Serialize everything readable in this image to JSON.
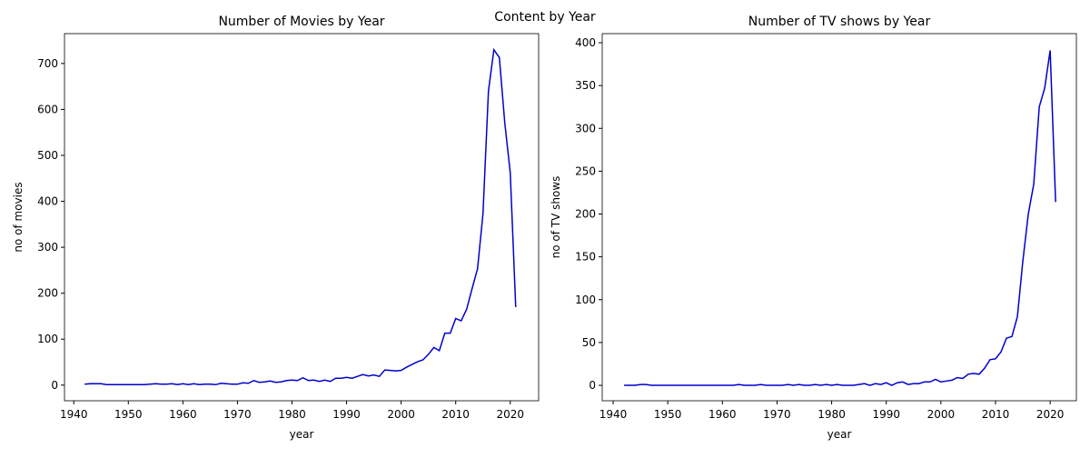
{
  "title": "Content by Year",
  "chart_data": [
    {
      "type": "line",
      "title": "Number of Movies by Year",
      "xlabel": "year",
      "ylabel": "no of movies",
      "x": [
        1942,
        1943,
        1944,
        1945,
        1946,
        1947,
        1948,
        1949,
        1950,
        1951,
        1952,
        1953,
        1954,
        1955,
        1956,
        1957,
        1958,
        1959,
        1960,
        1961,
        1962,
        1963,
        1964,
        1965,
        1966,
        1967,
        1968,
        1969,
        1970,
        1971,
        1972,
        1973,
        1974,
        1975,
        1976,
        1977,
        1978,
        1979,
        1980,
        1981,
        1982,
        1983,
        1984,
        1985,
        1986,
        1987,
        1988,
        1989,
        1990,
        1991,
        1992,
        1993,
        1994,
        1995,
        1996,
        1997,
        1998,
        1999,
        2000,
        2001,
        2002,
        2003,
        2004,
        2005,
        2006,
        2007,
        2008,
        2009,
        2010,
        2011,
        2012,
        2013,
        2014,
        2015,
        2016,
        2017,
        2018,
        2019,
        2020,
        2021
      ],
      "series": [
        {
          "name": "movies",
          "color": "#0000cd",
          "values": [
            2,
            3,
            3,
            3,
            1,
            1,
            1,
            1,
            1,
            1,
            1,
            1,
            2,
            3,
            2,
            2,
            3,
            1,
            3,
            1,
            3,
            1,
            2,
            2,
            1,
            4,
            3,
            2,
            2,
            5,
            4,
            10,
            6,
            7,
            9,
            6,
            7,
            10,
            11,
            10,
            16,
            10,
            11,
            8,
            11,
            8,
            15,
            15,
            17,
            15,
            19,
            23,
            20,
            22,
            19,
            33,
            32,
            31,
            32,
            39,
            45,
            51,
            55,
            67,
            82,
            75,
            113,
            113,
            145,
            140,
            165,
            210,
            253,
            373,
            640,
            730,
            713,
            570,
            462,
            170
          ]
        }
      ],
      "xlim": [
        1938.3,
        2025.2
      ],
      "xticks": [
        1940,
        1950,
        1960,
        1970,
        1980,
        1990,
        2000,
        2010,
        2020
      ],
      "ylim": [
        -34,
        765
      ],
      "yticks": [
        0,
        100,
        200,
        300,
        400,
        500,
        600,
        700
      ]
    },
    {
      "type": "line",
      "title": "Number of TV shows by Year",
      "xlabel": "year",
      "ylabel": "no of TV shows",
      "x": [
        1942,
        1943,
        1944,
        1945,
        1946,
        1947,
        1948,
        1949,
        1950,
        1951,
        1952,
        1953,
        1954,
        1955,
        1956,
        1957,
        1958,
        1959,
        1960,
        1961,
        1962,
        1963,
        1964,
        1965,
        1966,
        1967,
        1968,
        1969,
        1970,
        1971,
        1972,
        1973,
        1974,
        1975,
        1976,
        1977,
        1978,
        1979,
        1980,
        1981,
        1982,
        1983,
        1984,
        1985,
        1986,
        1987,
        1988,
        1989,
        1990,
        1991,
        1992,
        1993,
        1994,
        1995,
        1996,
        1997,
        1998,
        1999,
        2000,
        2001,
        2002,
        2003,
        2004,
        2005,
        2006,
        2007,
        2008,
        2009,
        2010,
        2011,
        2012,
        2013,
        2014,
        2015,
        2016,
        2017,
        2018,
        2019,
        2020,
        2021
      ],
      "series": [
        {
          "name": "TV shows",
          "color": "#0000cd",
          "values": [
            0,
            0,
            0,
            1,
            1,
            0,
            0,
            0,
            0,
            0,
            0,
            0,
            0,
            0,
            0,
            0,
            0,
            0,
            0,
            0,
            0,
            1,
            0,
            0,
            0,
            1,
            0,
            0,
            0,
            0,
            1,
            0,
            1,
            0,
            0,
            1,
            0,
            1,
            0,
            1,
            0,
            0,
            0,
            1,
            2,
            0,
            2,
            1,
            3,
            0,
            3,
            4,
            1,
            2,
            2,
            4,
            4,
            7,
            4,
            5,
            6,
            9,
            8,
            13,
            14,
            13,
            20,
            30,
            31,
            39,
            55,
            57,
            80,
            145,
            200,
            235,
            325,
            347,
            391,
            214
          ]
        }
      ],
      "xlim": [
        1938,
        2024.8
      ],
      "xticks": [
        1940,
        1950,
        1960,
        1970,
        1980,
        1990,
        2000,
        2010,
        2020
      ],
      "ylim": [
        -18,
        410.6
      ],
      "yticks": [
        0,
        50,
        100,
        150,
        200,
        250,
        300,
        350,
        400
      ]
    }
  ]
}
